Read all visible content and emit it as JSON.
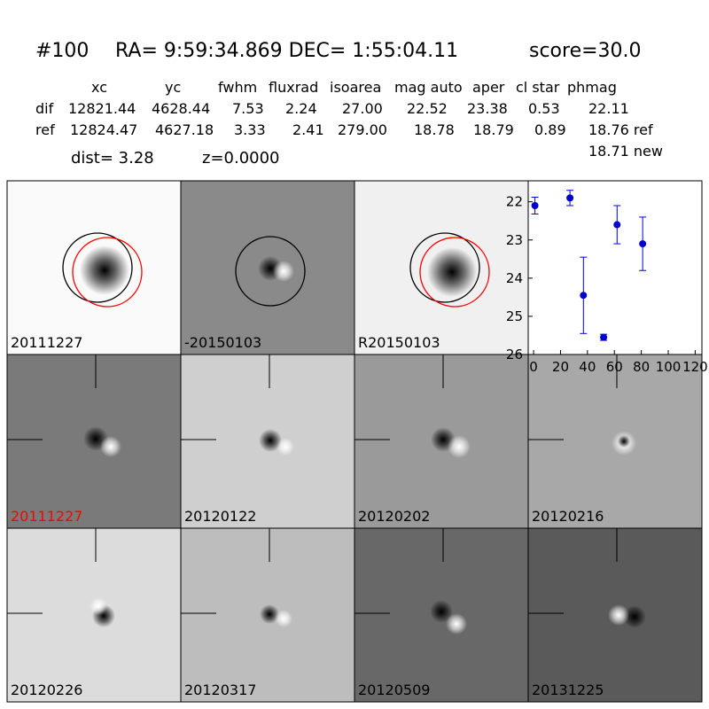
{
  "header": {
    "id": "#100",
    "coords": "RA= 9:59:34.869 DEC= 1:55:04.11",
    "score": "score=30.0"
  },
  "table": {
    "columns": [
      "xc",
      "yc",
      "fwhm",
      "fluxrad",
      "isoarea",
      "mag auto",
      "aper",
      "cl star",
      "phmag"
    ],
    "rows": [
      [
        "dif",
        "12821.44",
        "4628.44",
        "7.53",
        "2.24",
        "27.00",
        "22.52",
        "23.38",
        "0.53",
        "22.11"
      ],
      [
        "ref",
        "12824.47",
        "4627.18",
        "3.33",
        "2.41",
        "279.00",
        "18.78",
        "18.79",
        "0.89",
        "18.76 ref"
      ]
    ],
    "extra": "18.71 new"
  },
  "dist": "dist=  3.28",
  "z": "z=0.0000",
  "stamps": [
    {
      "label": "20111227"
    },
    {
      "label": "-20150103"
    },
    {
      "label": "R20150103"
    },
    {
      "label": "20111227",
      "label_color": "#ff0000"
    },
    {
      "label": "20120122"
    },
    {
      "label": "20120202"
    },
    {
      "label": "20120216"
    },
    {
      "label": "20120226"
    },
    {
      "label": "20120317"
    },
    {
      "label": "20120509"
    },
    {
      "label": "20131225"
    }
  ],
  "chart_data": {
    "type": "errorbar",
    "color": "#0000cc",
    "x": [
      1,
      27,
      37,
      52,
      62,
      81
    ],
    "values": [
      22.1,
      21.9,
      24.45,
      25.55,
      22.6,
      23.1
    ],
    "errors": [
      0.22,
      0.2,
      1.0,
      0.08,
      0.5,
      0.7
    ],
    "xlim": [
      -4,
      125
    ],
    "ylim": [
      21.45,
      26
    ],
    "inverted": true,
    "xticks": [
      0,
      20,
      40,
      60,
      80,
      100,
      120
    ],
    "yticks": [
      22,
      23,
      24,
      25,
      26
    ]
  }
}
